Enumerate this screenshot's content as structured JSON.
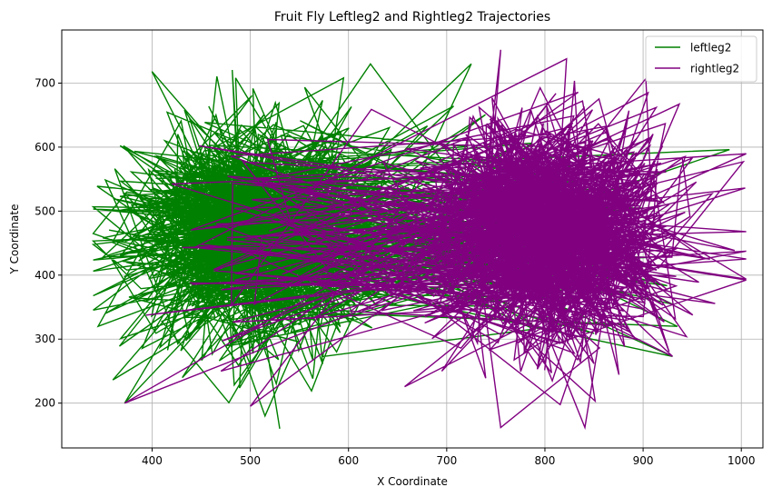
{
  "chart_data": {
    "type": "line",
    "title": "Fruit Fly Leftleg2 and Rightleg2 Trajectories",
    "xlabel": "X Coordinate",
    "ylabel": "Y Coordinate",
    "xlim": [
      308,
      1022
    ],
    "ylim": [
      130,
      783
    ],
    "xticks": [
      400,
      500,
      600,
      700,
      800,
      900,
      1000
    ],
    "yticks": [
      200,
      300,
      400,
      500,
      600,
      700
    ],
    "grid": true,
    "legend_position": "top-right",
    "series": [
      {
        "name": "leftleg2",
        "color": "#008000",
        "center": [
          510,
          465
        ],
        "spread": [
          68,
          85
        ],
        "x_range": [
          340,
          988
        ],
        "y_range": [
          160,
          730
        ],
        "excursions": [
          [
            340,
            465
          ],
          [
            988,
            596
          ],
          [
            725,
            730
          ],
          [
            935,
            320
          ],
          [
            930,
            273
          ],
          [
            372,
            200
          ],
          [
            485,
            708
          ],
          [
            530,
            160
          ],
          [
            515,
            180
          ],
          [
            595,
            708
          ],
          [
            345,
            320
          ]
        ],
        "count": 1300
      },
      {
        "name": "rightleg2",
        "color": "#800080",
        "center": [
          800,
          470
        ],
        "spread": [
          68,
          85
        ],
        "x_range": [
          372,
          1005
        ],
        "y_range": [
          162,
          752
        ],
        "excursions": [
          [
            1005,
            468
          ],
          [
            755,
            752
          ],
          [
            822,
            738
          ],
          [
            372,
            200
          ],
          [
            755,
            162
          ],
          [
            930,
            273
          ],
          [
            950,
            583
          ],
          [
            470,
            250
          ],
          [
            500,
            195
          ],
          [
            695,
            250
          ]
        ],
        "count": 1300
      }
    ]
  },
  "colors": {
    "grid": "#b0b0b0",
    "axis": "#000000"
  }
}
